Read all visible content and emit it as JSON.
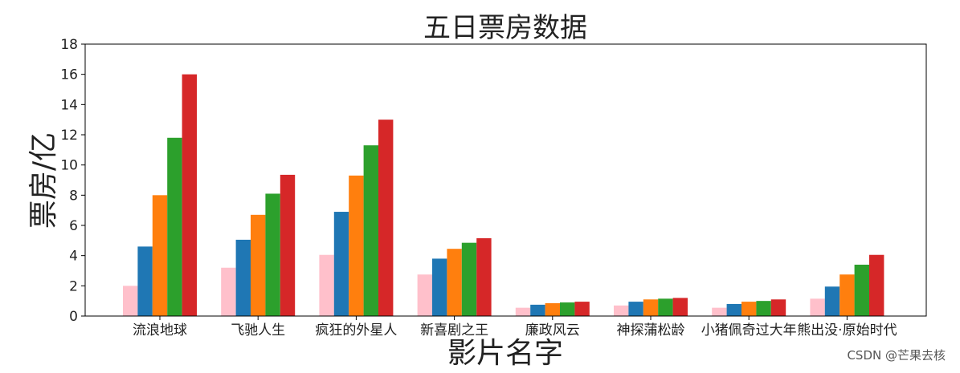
{
  "chart_data": {
    "type": "bar",
    "title": "五日票房数据",
    "xlabel": "影片名字",
    "ylabel": "票房/亿",
    "ylim": [
      0,
      18
    ],
    "yticks": [
      0,
      2,
      4,
      6,
      8,
      10,
      12,
      14,
      16,
      18
    ],
    "grid": false,
    "legend": "none",
    "categories": [
      "流浪地球",
      "飞驰人生",
      "疯狂的外星人",
      "新喜剧之王",
      "廉政风云",
      "神探蒲松龄",
      "小猪佩奇过大年",
      "熊出没·原始时代"
    ],
    "series": [
      {
        "color": "#ffc0cb",
        "values": [
          2.0,
          3.2,
          4.05,
          2.75,
          0.55,
          0.7,
          0.55,
          1.15
        ]
      },
      {
        "color": "#1f77b4",
        "values": [
          4.6,
          5.05,
          6.9,
          3.8,
          0.75,
          0.95,
          0.8,
          1.95
        ]
      },
      {
        "color": "#ff7f0e",
        "values": [
          8.0,
          6.7,
          9.3,
          4.45,
          0.85,
          1.1,
          0.95,
          2.75
        ]
      },
      {
        "color": "#2ca02c",
        "values": [
          11.8,
          8.1,
          11.3,
          4.85,
          0.9,
          1.15,
          1.0,
          3.4
        ]
      },
      {
        "color": "#d62728",
        "values": [
          16.0,
          9.35,
          13.0,
          5.15,
          0.95,
          1.2,
          1.1,
          4.05
        ]
      }
    ]
  },
  "watermark": "CSDN @芒果去核"
}
